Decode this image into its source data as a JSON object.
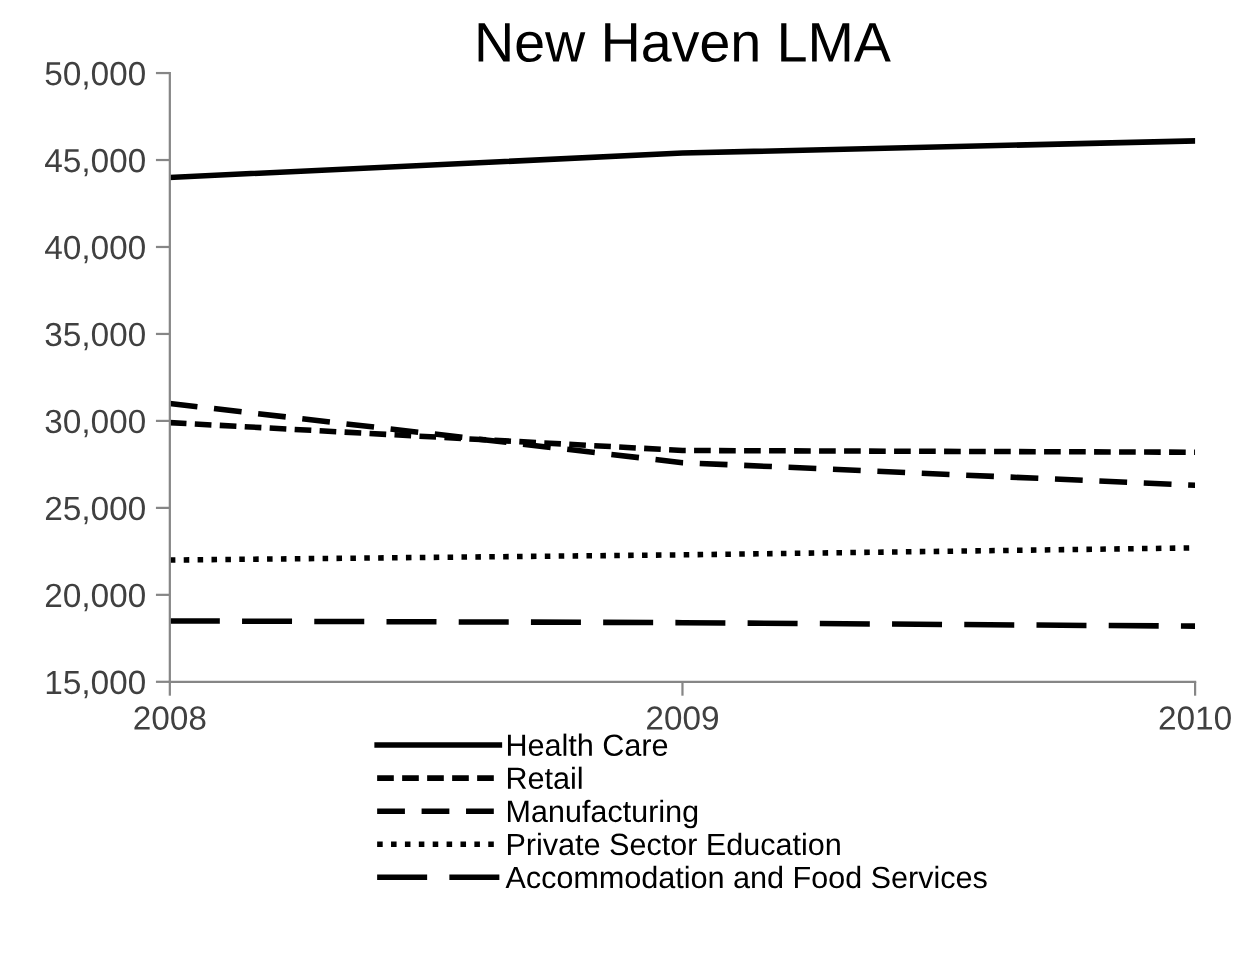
{
  "chart_data": {
    "type": "line",
    "title": "New Haven LMA",
    "categories": [
      "2008",
      "2009",
      "2010"
    ],
    "series": [
      {
        "name": "Health Care",
        "color": "#000000",
        "line_style": "solid",
        "values": [
          44000,
          45400,
          46100
        ]
      },
      {
        "name": "Retail",
        "color": "#000000",
        "line_style": "dashed",
        "values": [
          29900,
          28300,
          28200
        ]
      },
      {
        "name": "Manufacturing",
        "color": "#000000",
        "line_style": "medium dashed",
        "values": [
          31000,
          27600,
          26300
        ]
      },
      {
        "name": "Private Sector Education",
        "color": "#000000",
        "line_style": "dotted",
        "values": [
          22000,
          22300,
          22700
        ]
      },
      {
        "name": "Accommodation and Food Services",
        "color": "#000000",
        "line_style": "long dashed",
        "values": [
          18500,
          18400,
          18200
        ]
      }
    ],
    "ylim": [
      15000,
      50000
    ],
    "yticks": [
      {
        "value": 15000,
        "label": "15,000"
      },
      {
        "value": 20000,
        "label": "20,000"
      },
      {
        "value": 25000,
        "label": "25,000"
      },
      {
        "value": 30000,
        "label": "30,000"
      },
      {
        "value": 35000,
        "label": "35,000"
      },
      {
        "value": 40000,
        "label": "40,000"
      },
      {
        "value": 45000,
        "label": "45,000"
      },
      {
        "value": 50000,
        "label": "50,000"
      }
    ],
    "grid": false,
    "marker": "none",
    "legend": "bottom"
  }
}
